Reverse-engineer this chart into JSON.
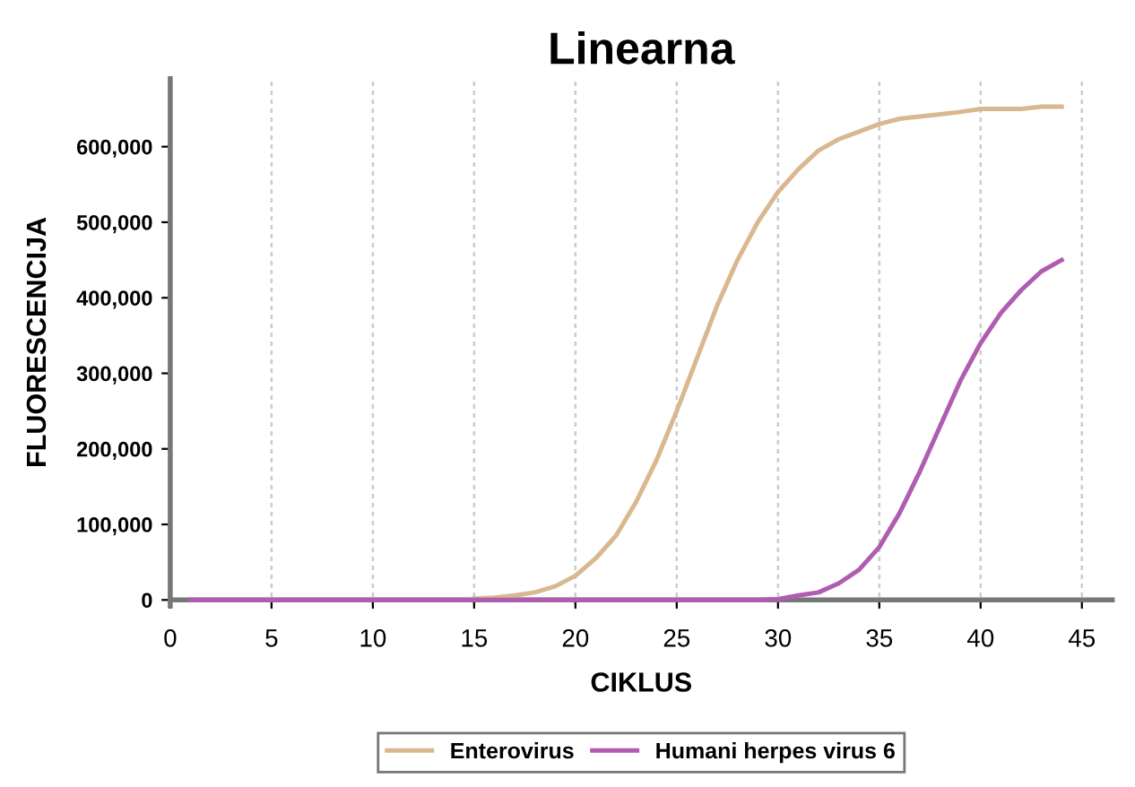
{
  "chart_data": {
    "type": "line",
    "title": "Linearna",
    "xlabel": "CIKLUS",
    "ylabel": "FLUORESCENCIJA",
    "x": [
      1,
      2,
      3,
      4,
      5,
      6,
      7,
      8,
      9,
      10,
      11,
      12,
      13,
      14,
      15,
      16,
      17,
      18,
      19,
      20,
      21,
      22,
      23,
      24,
      25,
      26,
      27,
      28,
      29,
      30,
      31,
      32,
      33,
      34,
      35,
      36,
      37,
      38,
      39,
      40,
      41,
      42,
      43,
      44
    ],
    "series": [
      {
        "name": "Enterovirus",
        "color": "#d9b88f",
        "values": [
          null,
          null,
          null,
          null,
          null,
          null,
          null,
          null,
          null,
          null,
          null,
          null,
          null,
          null,
          2000,
          3000,
          6000,
          10000,
          18000,
          32000,
          55000,
          85000,
          130000,
          185000,
          250000,
          320000,
          390000,
          450000,
          500000,
          540000,
          570000,
          595000,
          610000,
          620000,
          630000,
          637000,
          640000,
          643000,
          646000,
          650000,
          650000,
          650000,
          653000,
          653000
        ]
      },
      {
        "name": "Humani herpes virus 6",
        "color": "#b05cb0",
        "values": [
          0,
          0,
          0,
          0,
          0,
          0,
          0,
          0,
          0,
          0,
          0,
          0,
          0,
          0,
          0,
          0,
          0,
          0,
          0,
          0,
          0,
          0,
          0,
          0,
          0,
          0,
          0,
          0,
          0,
          1000,
          6000,
          10000,
          22000,
          40000,
          70000,
          115000,
          170000,
          230000,
          290000,
          340000,
          380000,
          410000,
          435000,
          450000
        ]
      }
    ],
    "xlim": [
      0,
      46.5
    ],
    "xticks": [
      0,
      5,
      10,
      15,
      20,
      25,
      30,
      35,
      40,
      45
    ],
    "ylim": [
      -8000,
      690000
    ],
    "yticks": [
      {
        "value": 0,
        "label": "0"
      },
      {
        "value": 100000,
        "label": "100,000"
      },
      {
        "value": 200000,
        "label": "200,000"
      },
      {
        "value": 300000,
        "label": "300,000"
      },
      {
        "value": 400000,
        "label": "400,000"
      },
      {
        "value": 500000,
        "label": "500,000"
      },
      {
        "value": 600000,
        "label": "600,000"
      }
    ],
    "grid": "x",
    "legend": "bottom",
    "marker": "none",
    "line_style": "solid"
  }
}
